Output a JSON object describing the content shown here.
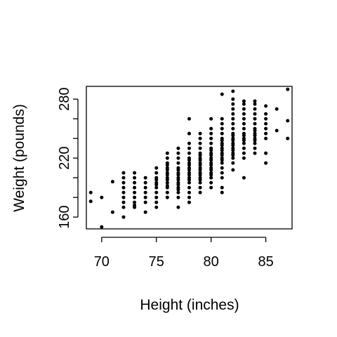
{
  "chart_data": {
    "type": "scatter",
    "title": "",
    "xlabel": "Height (inches)",
    "ylabel": "Weight (pounds)",
    "xlim": [
      68.6,
      87.4
    ],
    "ylim": [
      148,
      293
    ],
    "xticks": [
      70,
      75,
      80,
      85
    ],
    "yticks": [
      160,
      220,
      280
    ],
    "ytick_minor": [
      180,
      200,
      240,
      260
    ],
    "grid": false,
    "legend": "none",
    "point_color": "#000000",
    "points": [
      [
        69,
        176
      ],
      [
        69,
        185
      ],
      [
        70,
        150
      ],
      [
        70,
        180
      ],
      [
        71,
        165
      ],
      [
        71,
        196
      ],
      [
        72,
        160
      ],
      [
        72,
        170
      ],
      [
        72,
        175
      ],
      [
        72,
        180
      ],
      [
        72,
        185
      ],
      [
        72,
        190
      ],
      [
        72,
        195
      ],
      [
        72,
        200
      ],
      [
        72,
        205
      ],
      [
        73,
        170
      ],
      [
        73,
        172
      ],
      [
        73,
        175
      ],
      [
        73,
        180
      ],
      [
        73,
        185
      ],
      [
        73,
        190
      ],
      [
        73,
        195
      ],
      [
        73,
        200
      ],
      [
        73,
        205
      ],
      [
        74,
        165
      ],
      [
        74,
        175
      ],
      [
        74,
        180
      ],
      [
        74,
        185
      ],
      [
        74,
        190
      ],
      [
        74,
        195
      ],
      [
        74,
        200
      ],
      [
        75,
        170
      ],
      [
        75,
        175
      ],
      [
        75,
        180
      ],
      [
        75,
        185
      ],
      [
        75,
        190
      ],
      [
        75,
        193
      ],
      [
        75,
        195
      ],
      [
        75,
        198
      ],
      [
        75,
        200
      ],
      [
        75,
        205
      ],
      [
        75,
        210
      ],
      [
        76,
        180
      ],
      [
        76,
        185
      ],
      [
        76,
        190
      ],
      [
        76,
        192
      ],
      [
        76,
        195
      ],
      [
        76,
        198
      ],
      [
        76,
        200
      ],
      [
        76,
        203
      ],
      [
        76,
        205
      ],
      [
        76,
        208
      ],
      [
        76,
        210
      ],
      [
        76,
        213
      ],
      [
        76,
        215
      ],
      [
        76,
        220
      ],
      [
        76,
        225
      ],
      [
        77,
        170
      ],
      [
        77,
        180
      ],
      [
        77,
        185
      ],
      [
        77,
        188
      ],
      [
        77,
        190
      ],
      [
        77,
        193
      ],
      [
        77,
        195
      ],
      [
        77,
        198
      ],
      [
        77,
        200
      ],
      [
        77,
        203
      ],
      [
        77,
        205
      ],
      [
        77,
        208
      ],
      [
        77,
        210
      ],
      [
        77,
        215
      ],
      [
        77,
        220
      ],
      [
        77,
        225
      ],
      [
        77,
        230
      ],
      [
        78,
        175
      ],
      [
        78,
        180
      ],
      [
        78,
        185
      ],
      [
        78,
        190
      ],
      [
        78,
        195
      ],
      [
        78,
        198
      ],
      [
        78,
        200
      ],
      [
        78,
        203
      ],
      [
        78,
        205
      ],
      [
        78,
        208
      ],
      [
        78,
        210
      ],
      [
        78,
        213
      ],
      [
        78,
        215
      ],
      [
        78,
        218
      ],
      [
        78,
        220
      ],
      [
        78,
        225
      ],
      [
        78,
        230
      ],
      [
        78,
        235
      ],
      [
        78,
        245
      ],
      [
        78,
        260
      ],
      [
        79,
        185
      ],
      [
        79,
        190
      ],
      [
        79,
        195
      ],
      [
        79,
        198
      ],
      [
        79,
        200
      ],
      [
        79,
        203
      ],
      [
        79,
        205
      ],
      [
        79,
        208
      ],
      [
        79,
        210
      ],
      [
        79,
        213
      ],
      [
        79,
        215
      ],
      [
        79,
        218
      ],
      [
        79,
        220
      ],
      [
        79,
        223
      ],
      [
        79,
        225
      ],
      [
        79,
        230
      ],
      [
        79,
        235
      ],
      [
        79,
        240
      ],
      [
        79,
        245
      ],
      [
        80,
        190
      ],
      [
        80,
        195
      ],
      [
        80,
        200
      ],
      [
        80,
        203
      ],
      [
        80,
        205
      ],
      [
        80,
        208
      ],
      [
        80,
        210
      ],
      [
        80,
        213
      ],
      [
        80,
        215
      ],
      [
        80,
        218
      ],
      [
        80,
        220
      ],
      [
        80,
        223
      ],
      [
        80,
        225
      ],
      [
        80,
        228
      ],
      [
        80,
        230
      ],
      [
        80,
        235
      ],
      [
        80,
        240
      ],
      [
        80,
        245
      ],
      [
        80,
        250
      ],
      [
        80,
        260
      ],
      [
        81,
        185
      ],
      [
        81,
        190
      ],
      [
        81,
        200
      ],
      [
        81,
        205
      ],
      [
        81,
        210
      ],
      [
        81,
        215
      ],
      [
        81,
        218
      ],
      [
        81,
        220
      ],
      [
        81,
        223
      ],
      [
        81,
        225
      ],
      [
        81,
        228
      ],
      [
        81,
        230
      ],
      [
        81,
        233
      ],
      [
        81,
        235
      ],
      [
        81,
        238
      ],
      [
        81,
        240
      ],
      [
        81,
        245
      ],
      [
        81,
        250
      ],
      [
        81,
        255
      ],
      [
        81,
        260
      ],
      [
        81,
        285
      ],
      [
        82,
        208
      ],
      [
        82,
        215
      ],
      [
        82,
        220
      ],
      [
        82,
        223
      ],
      [
        82,
        225
      ],
      [
        82,
        228
      ],
      [
        82,
        230
      ],
      [
        82,
        233
      ],
      [
        82,
        235
      ],
      [
        82,
        238
      ],
      [
        82,
        240
      ],
      [
        82,
        243
      ],
      [
        82,
        245
      ],
      [
        82,
        250
      ],
      [
        82,
        255
      ],
      [
        82,
        260
      ],
      [
        82,
        265
      ],
      [
        82,
        270
      ],
      [
        82,
        275
      ],
      [
        82,
        280
      ],
      [
        82,
        288
      ],
      [
        83,
        200
      ],
      [
        83,
        220
      ],
      [
        83,
        225
      ],
      [
        83,
        230
      ],
      [
        83,
        235
      ],
      [
        83,
        238
      ],
      [
        83,
        240
      ],
      [
        83,
        243
      ],
      [
        83,
        245
      ],
      [
        83,
        250
      ],
      [
        83,
        255
      ],
      [
        83,
        260
      ],
      [
        83,
        265
      ],
      [
        83,
        270
      ],
      [
        83,
        275
      ],
      [
        83,
        278
      ],
      [
        84,
        225
      ],
      [
        84,
        230
      ],
      [
        84,
        235
      ],
      [
        84,
        238
      ],
      [
        84,
        240
      ],
      [
        84,
        243
      ],
      [
        84,
        245
      ],
      [
        84,
        248
      ],
      [
        84,
        250
      ],
      [
        84,
        255
      ],
      [
        84,
        260
      ],
      [
        84,
        265
      ],
      [
        84,
        270
      ],
      [
        84,
        275
      ],
      [
        84,
        278
      ],
      [
        85,
        215
      ],
      [
        85,
        225
      ],
      [
        85,
        240
      ],
      [
        85,
        245
      ],
      [
        85,
        250
      ],
      [
        85,
        255
      ],
      [
        85,
        260
      ],
      [
        85,
        265
      ],
      [
        85,
        273
      ],
      [
        86,
        248
      ],
      [
        86,
        270
      ],
      [
        87,
        240
      ],
      [
        87,
        258
      ],
      [
        87,
        290
      ]
    ]
  }
}
